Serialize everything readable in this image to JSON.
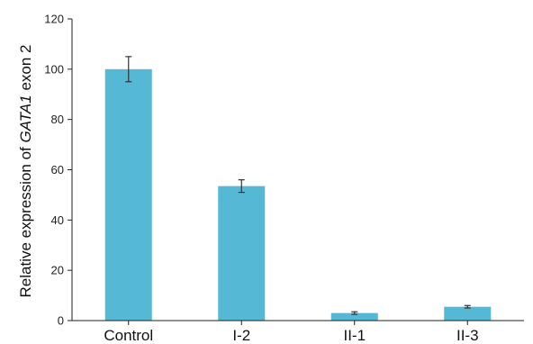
{
  "chart_data": {
    "type": "bar",
    "title": "",
    "xlabel": "",
    "ylabel_parts": [
      "Relative expression of ",
      "GATA1",
      " exon 2"
    ],
    "categories": [
      "Control",
      "I-2",
      "II-1",
      "II-3"
    ],
    "values": [
      100,
      53.5,
      3,
      5.5
    ],
    "error": [
      5,
      2.5,
      0.5,
      0.5
    ],
    "ylim": [
      0,
      120
    ],
    "yticks": [
      0,
      20,
      40,
      60,
      80,
      100,
      120
    ],
    "grid": false,
    "bar_color": "#55B8D4"
  }
}
